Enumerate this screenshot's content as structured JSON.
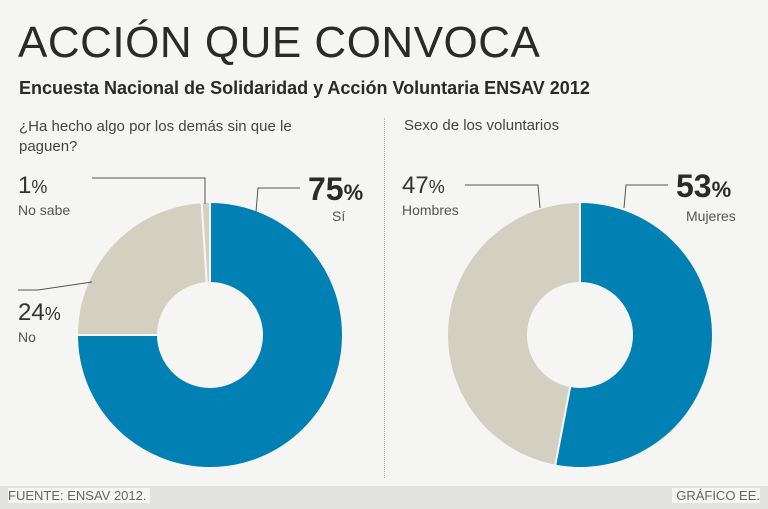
{
  "title": "ACCIÓN QUE CONVOCA",
  "subtitle": "Encuesta Nacional de Solidaridad y Acción Voluntaria ENSAV 2012",
  "footer": {
    "source": "FUENTE: ENSAV 2012.",
    "credit": "GRÁFICO EE."
  },
  "colors": {
    "primary": "#0080b3",
    "secondary": "#d3d0c2"
  },
  "chart_data": [
    {
      "type": "pie",
      "title": "¿Ha hecho algo por los demás sin que le paguen?",
      "slices": [
        {
          "label": "Sí",
          "value": 75,
          "display": "75",
          "color": "#0080b3"
        },
        {
          "label": "No",
          "value": 24,
          "display": "24",
          "color": "#d3d0c2"
        },
        {
          "label": "No sabe",
          "value": 1,
          "display": "1",
          "color": "#d3d0c2"
        }
      ]
    },
    {
      "type": "pie",
      "title": "Sexo de los voluntarios",
      "slices": [
        {
          "label": "Mujeres",
          "value": 53,
          "display": "53",
          "color": "#0080b3"
        },
        {
          "label": "Hombres",
          "value": 47,
          "display": "47",
          "color": "#d3d0c2"
        }
      ]
    }
  ]
}
